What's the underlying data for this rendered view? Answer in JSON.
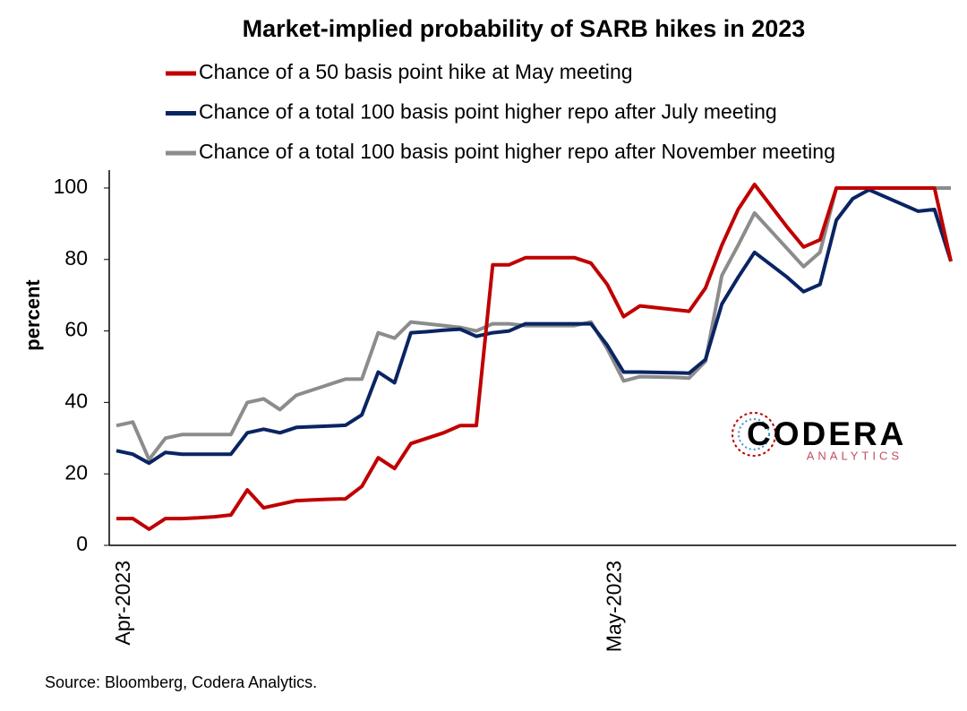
{
  "chart_data": {
    "type": "line",
    "title": "Market-implied probability of SARB hikes in 2023",
    "y_label": "percent",
    "source": "Source: Bloomberg, Codera Analytics.",
    "logo": {
      "name": "CODERA",
      "tagline": "ANALYTICS"
    },
    "categories": [
      "Apr-2023",
      null,
      null,
      null,
      null,
      null,
      null,
      null,
      null,
      null,
      null,
      null,
      null,
      null,
      null,
      null,
      null,
      null,
      null,
      null,
      null,
      null,
      null,
      null,
      null,
      null,
      null,
      null,
      null,
      null,
      "May-2023",
      null,
      null,
      null,
      null,
      null,
      null,
      null,
      null,
      null,
      null,
      null,
      null,
      null,
      null,
      null,
      null,
      null,
      null,
      null,
      null,
      null
    ],
    "ylim": [
      0,
      105
    ],
    "yticks": [
      0,
      20,
      40,
      60,
      80,
      100
    ],
    "legend": "top",
    "series": [
      {
        "name": "Chance of a 50 basis point hike at May meeting",
        "color": "#c00000",
        "values": [
          7.5,
          7.5,
          4.5,
          7.5,
          7.5,
          7.7,
          8,
          8.5,
          15.5,
          10.5,
          11.5,
          12.5,
          12.7,
          12.9,
          13,
          16.5,
          24.5,
          21.5,
          28.5,
          30,
          31.5,
          33.5,
          33.5,
          78.5,
          78.5,
          80.5,
          80.5,
          80.5,
          80.5,
          79,
          73,
          64,
          67,
          66.5,
          66,
          65.5,
          72,
          84,
          94,
          101,
          95,
          89,
          83.5,
          85.5,
          100,
          100,
          100,
          100,
          100,
          100,
          100,
          79.5
        ]
      },
      {
        "name": "Chance of a total 100 basis point higher repo after July meeting",
        "color": "#0a2463",
        "values": [
          26.5,
          25.5,
          23,
          26,
          25.5,
          25.5,
          25.5,
          25.5,
          31.5,
          32.5,
          31.5,
          33,
          33.2,
          33.4,
          33.6,
          36.5,
          48.5,
          45.5,
          59.5,
          59.8,
          60.2,
          60.5,
          58.5,
          59.5,
          60,
          62,
          62,
          62,
          62,
          62,
          56,
          48.5,
          48.5,
          48.4,
          48.3,
          48.2,
          52,
          67.5,
          75,
          82,
          78.5,
          75,
          71,
          73,
          91,
          97,
          99.5,
          97.5,
          95.5,
          93.5,
          94,
          79.5
        ]
      },
      {
        "name": "Chance of a total 100 basis point higher repo after November meeting",
        "color": "#8c8c8c",
        "values": [
          33.5,
          34.5,
          24,
          30,
          31,
          31,
          31,
          31,
          40,
          41,
          38,
          42,
          43.5,
          45,
          46.5,
          46.5,
          59.5,
          58,
          62.5,
          62,
          61.5,
          61,
          60,
          62,
          62,
          61.5,
          61.5,
          61.5,
          61.5,
          62.5,
          55,
          46,
          47.2,
          47.1,
          47,
          46.8,
          51.5,
          75.5,
          84,
          93,
          88,
          83,
          78,
          82,
          100,
          100,
          100,
          100,
          100,
          100,
          100,
          100
        ]
      }
    ]
  }
}
